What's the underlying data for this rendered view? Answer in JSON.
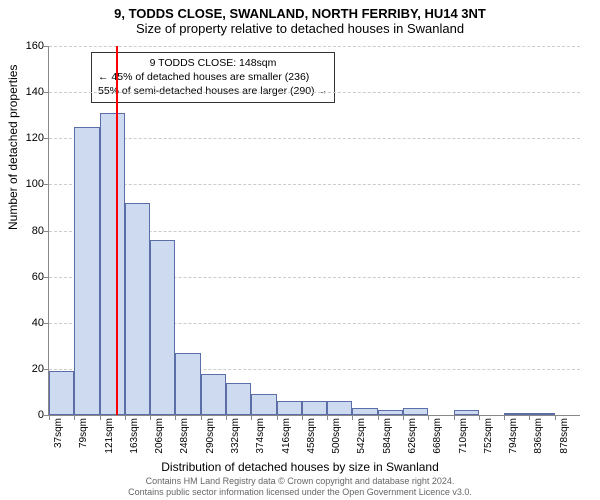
{
  "title": "9, TODDS CLOSE, SWANLAND, NORTH FERRIBY, HU14 3NT",
  "subtitle": "Size of property relative to detached houses in Swanland",
  "ylabel": "Number of detached properties",
  "xlabel": "Distribution of detached houses by size in Swanland",
  "footer_line1": "Contains HM Land Registry data © Crown copyright and database right 2024.",
  "footer_line2": "Contains public sector information licensed under the Open Government Licence v3.0.",
  "callout": {
    "line1": "9 TODDS CLOSE: 148sqm",
    "line2": "← 45% of detached houses are smaller (236)",
    "line3": "55% of semi-detached houses are larger (290) →"
  },
  "chart": {
    "type": "histogram",
    "ylim": [
      0,
      160
    ],
    "ytick_step": 20,
    "x_start": 37,
    "x_step": 42.1,
    "x_unit": "sqm",
    "bar_fill": "#cddaf0",
    "bar_stroke": "#5b6ea8",
    "grid_color": "#cccccc",
    "background_color": "#ffffff",
    "marker_value": 148,
    "marker_color": "#ff0000",
    "bars": [
      {
        "x": 37,
        "v": 19
      },
      {
        "x": 79,
        "v": 125
      },
      {
        "x": 121,
        "v": 131
      },
      {
        "x": 163,
        "v": 92
      },
      {
        "x": 206,
        "v": 76
      },
      {
        "x": 248,
        "v": 27
      },
      {
        "x": 290,
        "v": 18
      },
      {
        "x": 332,
        "v": 14
      },
      {
        "x": 374,
        "v": 9
      },
      {
        "x": 416,
        "v": 6
      },
      {
        "x": 458,
        "v": 6
      },
      {
        "x": 500,
        "v": 6
      },
      {
        "x": 542,
        "v": 3
      },
      {
        "x": 584,
        "v": 2
      },
      {
        "x": 626,
        "v": 3
      },
      {
        "x": 668,
        "v": 0
      },
      {
        "x": 710,
        "v": 2
      },
      {
        "x": 752,
        "v": 0
      },
      {
        "x": 794,
        "v": 1
      },
      {
        "x": 836,
        "v": 1
      },
      {
        "x": 878,
        "v": 0
      }
    ]
  }
}
